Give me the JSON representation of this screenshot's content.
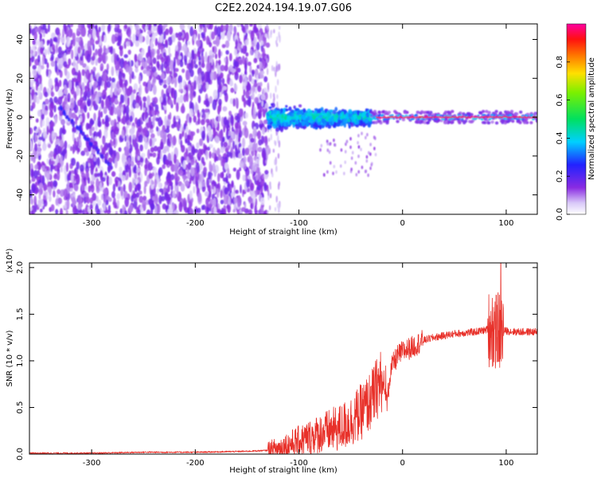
{
  "title": "C2E2.2024.194.19.07.G06",
  "chart_data": [
    {
      "type": "heatmap",
      "xlabel": "Height of straight line (km)",
      "ylabel": "Frequency (Hz)",
      "xlim": [
        -360,
        130
      ],
      "ylim": [
        -50,
        48
      ],
      "xticks": [
        -300,
        -200,
        -100,
        0,
        100
      ],
      "yticks": [
        -40,
        -20,
        0,
        20,
        40
      ],
      "grid": false,
      "colorbar": {
        "label": "Normalized spectral amplitude",
        "range": [
          0,
          1
        ],
        "ticks": [
          "0.0",
          "0.2",
          "0.4",
          "0.6",
          "0.8"
        ],
        "colormap": "rainbow (white-violet-blue-cyan-green-yellow-red-magenta)"
      },
      "regions": [
        {
          "x_range": [
            -360,
            -130
          ],
          "description": "broadband noise, frequency -50 to 48 Hz, amplitude 0.05-0.2"
        },
        {
          "x_range": [
            -130,
            -30
          ],
          "description": "signal band near 0 Hz, frequency -10 to 8 Hz, amplitude 0.2-0.5"
        },
        {
          "x_range": [
            -30,
            130
          ],
          "description": "narrow line at 0 Hz, frequency -2 to 2 Hz, amplitude 0.9-1.0"
        }
      ],
      "features": [
        {
          "name": "descending streak",
          "x": [
            -330,
            -282
          ],
          "y": [
            5,
            -25
          ]
        }
      ]
    },
    {
      "type": "line",
      "xlabel": "Height of straight line (km)",
      "ylabel": "SNR (10 * v/v)",
      "y_multiplier_label": "(x10⁴)",
      "xlim": [
        -360,
        130
      ],
      "ylim": [
        0,
        2.05
      ],
      "xticks": [
        -300,
        -200,
        -100,
        0,
        100
      ],
      "yticks": [
        "0.0",
        "0.5",
        "1.0",
        "1.5",
        "2.0"
      ],
      "grid": false,
      "series": [
        {
          "color": "#e8312a",
          "x": [
            -360,
            -300,
            -250,
            -200,
            -150,
            -130,
            -120,
            -110,
            -100,
            -90,
            -80,
            -70,
            -60,
            -50,
            -40,
            -30,
            -25,
            -20,
            -15,
            -12,
            -10,
            -5,
            0,
            10,
            20,
            30,
            40,
            50,
            60,
            70,
            80,
            85,
            90,
            95,
            100,
            110,
            120,
            130
          ],
          "values": [
            0.01,
            0.01,
            0.02,
            0.02,
            0.03,
            0.04,
            0.06,
            0.1,
            0.14,
            0.18,
            0.22,
            0.25,
            0.28,
            0.35,
            0.45,
            0.58,
            0.7,
            0.8,
            0.55,
            0.85,
            0.95,
            1.05,
            1.1,
            1.15,
            1.22,
            1.25,
            1.27,
            1.29,
            1.3,
            1.31,
            1.33,
            1.36,
            1.3,
            1.33,
            1.32,
            1.31,
            1.31,
            1.31
          ]
        }
      ]
    }
  ]
}
